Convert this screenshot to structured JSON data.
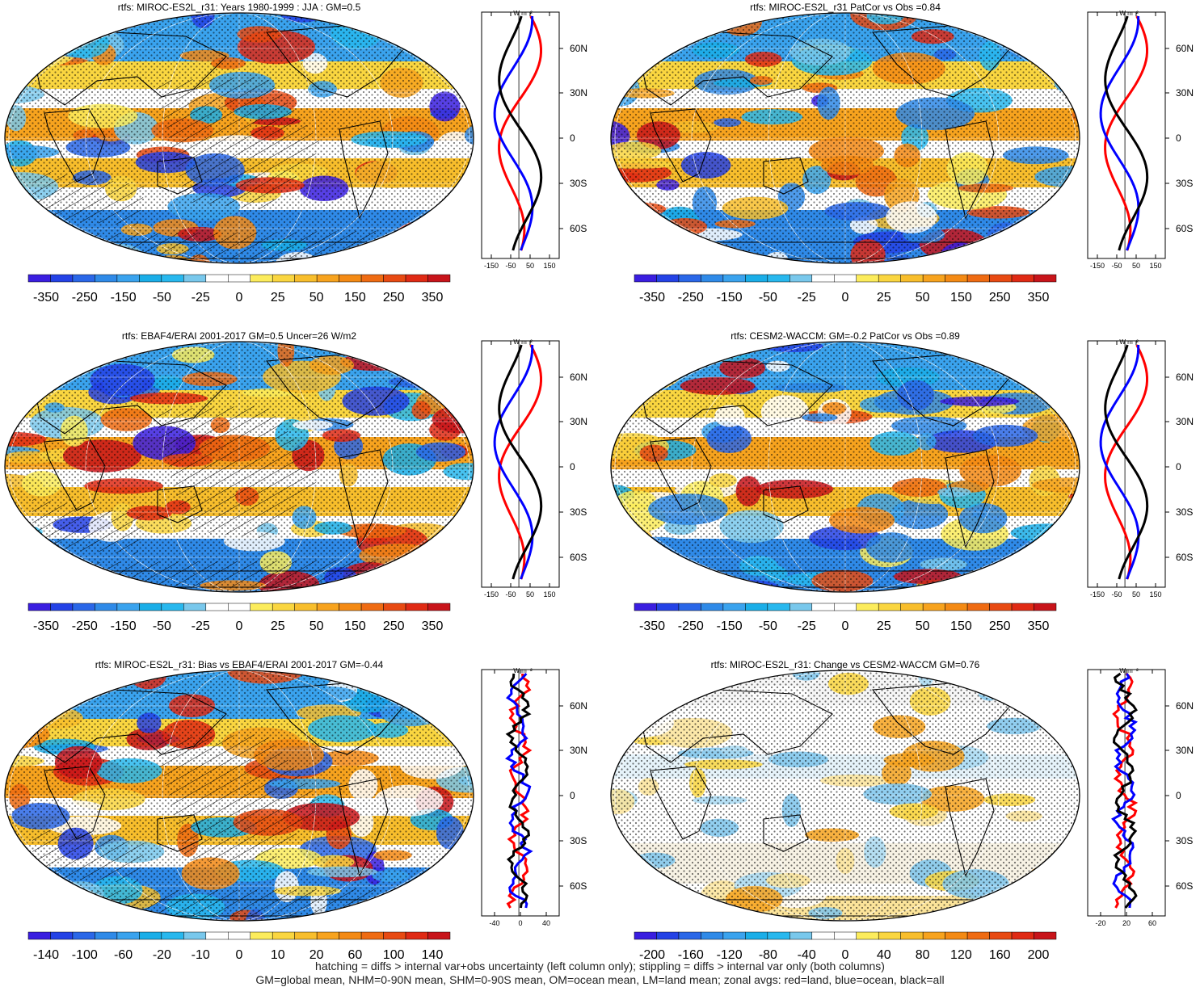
{
  "colors": {
    "diverging": [
      "#3a1ee0",
      "#2442e6",
      "#2a67e8",
      "#2f8ae8",
      "#3aa3ee",
      "#1aaee8",
      "#28b8ee",
      "#79c8ec",
      "#ffffff",
      "#ffffff",
      "#fcec5c",
      "#fad640",
      "#f8be2c",
      "#f7a31e",
      "#f48a14",
      "#ef6b12",
      "#e84a12",
      "#e02a14",
      "#c8141a"
    ],
    "land": "red",
    "ocean": "blue",
    "all": "black"
  },
  "zonal_axis_unit": "W m⁻²",
  "lat_labels": [
    "60N",
    "30N",
    "0",
    "30S",
    "60S"
  ],
  "panels": [
    {
      "id": "miroc-clim",
      "title": "rtfs: MIROC-ES2L_r31: Years 1980-1999 : JJA : GM=0.5",
      "colorbar_labels": [
        "-350",
        "-250",
        "-150",
        "-50",
        "-25",
        "0",
        "25",
        "50",
        "150",
        "250",
        "350"
      ],
      "zonal_ticks": [
        "-150",
        "-50",
        "50",
        "150"
      ],
      "hatched": true
    },
    {
      "id": "miroc-patcor",
      "title": "rtfs: MIROC-ES2L_r31 PatCor vs Obs =0.84",
      "colorbar_labels": [
        "-350",
        "-250",
        "-150",
        "-50",
        "-25",
        "0",
        "25",
        "50",
        "150",
        "250",
        "350"
      ],
      "zonal_ticks": [
        "-150",
        "-50",
        "50",
        "150"
      ],
      "hatched": false
    },
    {
      "id": "obs",
      "title": "rtfs: EBAF4/ERAI 2001-2017 GM=0.5 Uncer=26 W/m2",
      "colorbar_labels": [
        "-350",
        "-250",
        "-150",
        "-50",
        "-25",
        "0",
        "25",
        "50",
        "150",
        "250",
        "350"
      ],
      "zonal_ticks": [
        "-150",
        "-50",
        "50",
        "150"
      ],
      "hatched": true
    },
    {
      "id": "cesm",
      "title": "rtfs: CESM2-WACCM: GM=-0.2 PatCor vs Obs =0.89",
      "colorbar_labels": [
        "-350",
        "-250",
        "-150",
        "-50",
        "-25",
        "0",
        "25",
        "50",
        "150",
        "250",
        "350"
      ],
      "zonal_ticks": [
        "-150",
        "-50",
        "50",
        "150"
      ],
      "hatched": false
    },
    {
      "id": "bias",
      "title": "rtfs: MIROC-ES2L_r31: Bias vs EBAF4/ERAI 2001-2017 GM=-0.44",
      "colorbar_labels": [
        "-140",
        "-100",
        "-60",
        "-20",
        "-10",
        "0",
        "10",
        "20",
        "60",
        "100",
        "140"
      ],
      "zonal_ticks": [
        "-40",
        "0",
        "40"
      ],
      "hatched": true
    },
    {
      "id": "change",
      "title": "rtfs: MIROC-ES2L_r31: Change vs CESM2-WACCM GM=0.76",
      "colorbar_labels": [
        "-200",
        "-160",
        "-120",
        "-80",
        "-40",
        "0",
        "40",
        "80",
        "120",
        "160",
        "200"
      ],
      "zonal_ticks": [
        "-20",
        "20",
        "60"
      ],
      "hatched": false
    }
  ],
  "footer": {
    "line1": "hatching = diffs > internal var+obs uncertainty (left column only); stippling = diffs > internal var only (both columns)",
    "line2": "GM=global mean, NHM=0-90N mean, SHM=0-90S mean, OM=ocean mean, LM=land mean; zonal avgs: red=land, blue=ocean, black=all"
  }
}
